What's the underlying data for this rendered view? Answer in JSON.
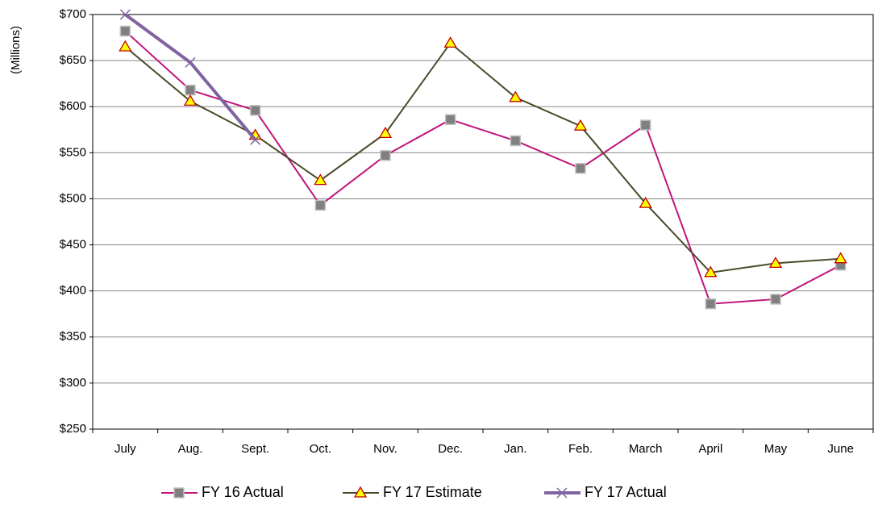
{
  "chart_data": {
    "type": "line",
    "y_axis_label": "(Millions)",
    "categories": [
      "July",
      "Aug.",
      "Sept.",
      "Oct.",
      "Nov.",
      "Dec.",
      "Jan.",
      "Feb.",
      "March",
      "April",
      "May",
      "June"
    ],
    "series": [
      {
        "name": "FY 16 Actual",
        "color": "#c0157a",
        "marker": "square",
        "marker_color": "#808080",
        "values": [
          682,
          618,
          596,
          493,
          547,
          586,
          563,
          533,
          580,
          386,
          391,
          428
        ]
      },
      {
        "name": "FY 17 Estimate",
        "color": "#4a4a2a",
        "marker": "triangle",
        "marker_color": "#ffff00",
        "values": [
          665,
          606,
          569,
          520,
          571,
          669,
          610,
          579,
          495,
          420,
          430,
          435
        ]
      },
      {
        "name": "FY 17 Actual",
        "color": "#8064a2",
        "marker": "x",
        "marker_color": "#8064a2",
        "values": [
          700,
          648,
          564,
          null,
          null,
          null,
          null,
          null,
          null,
          null,
          null,
          null
        ]
      }
    ],
    "ylim": [
      250,
      700
    ],
    "yticks": [
      {
        "value": 250,
        "label": "$250"
      },
      {
        "value": 300,
        "label": "$300"
      },
      {
        "value": 350,
        "label": "$350"
      },
      {
        "value": 400,
        "label": "$400"
      },
      {
        "value": 450,
        "label": "$450"
      },
      {
        "value": 500,
        "label": "$500"
      },
      {
        "value": 550,
        "label": "$550"
      },
      {
        "value": 600,
        "label": "$600"
      },
      {
        "value": 650,
        "label": "$650"
      },
      {
        "value": 700,
        "label": "$700"
      }
    ],
    "grid": true,
    "legend": "bottom"
  }
}
